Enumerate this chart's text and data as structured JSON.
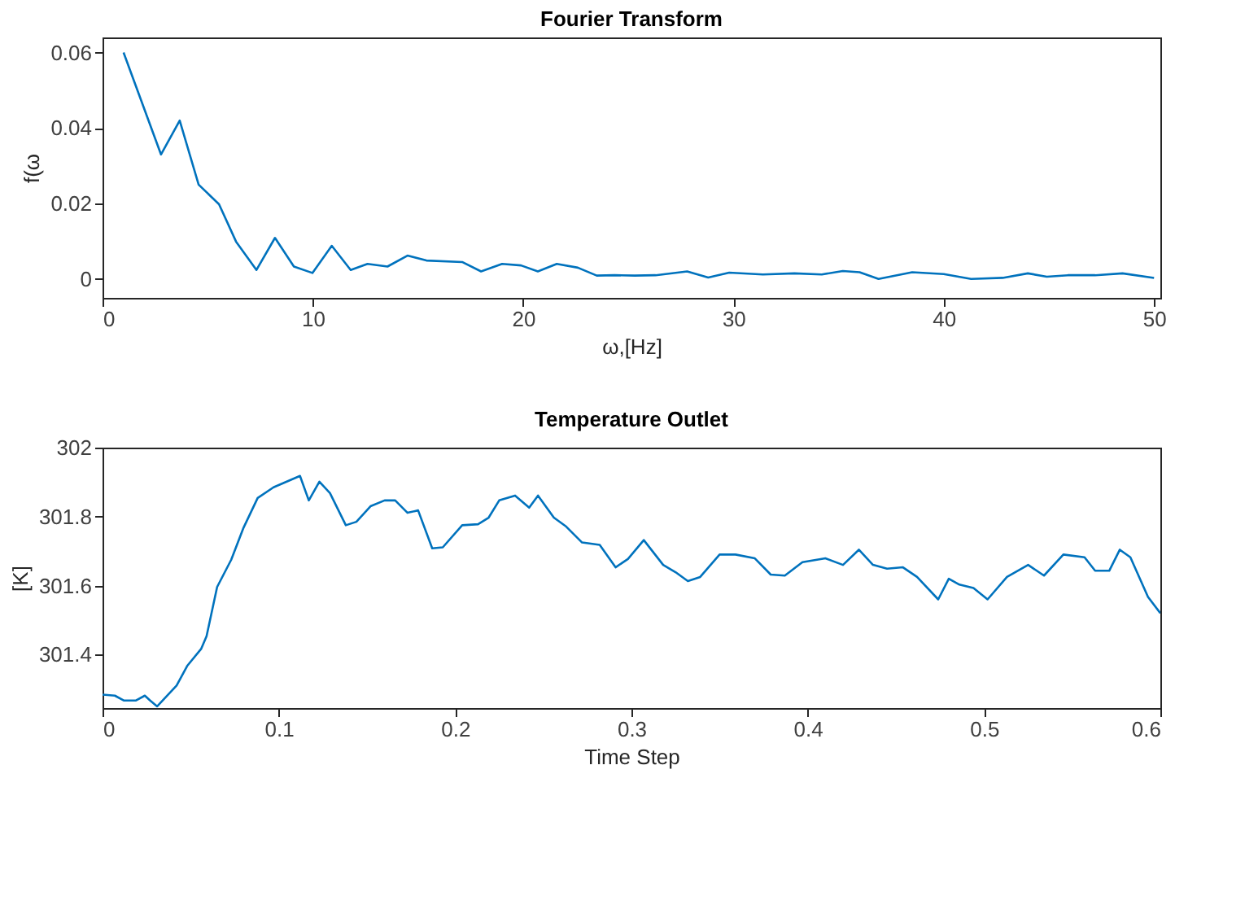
{
  "chart_data": [
    {
      "type": "line",
      "title": "Fourier Transform",
      "xlabel": "ω,[Hz]",
      "ylabel": "f(ω",
      "xlim": [
        0,
        50.3
      ],
      "xticks": [
        0,
        10,
        20,
        30,
        40,
        50
      ],
      "ylim": [
        -0.005,
        0.064
      ],
      "yticks": [
        0,
        0.02,
        0.04,
        0.06
      ],
      "grid": false,
      "marker": "none",
      "line_style": "solid",
      "series": [
        {
          "color": "#0072bd",
          "x": [
            1.0,
            2.78,
            3.67,
            4.57,
            5.54,
            6.35,
            7.32,
            8.2,
            9.1,
            9.98,
            10.9,
            11.8,
            12.6,
            13.55,
            14.5,
            15.4,
            17.1,
            18.0,
            19.0,
            19.9,
            20.7,
            21.6,
            22.6,
            23.5,
            24.35,
            25.3,
            26.3,
            27.8,
            28.8,
            29.8,
            31.4,
            32.9,
            34.2,
            35.2,
            36.0,
            36.9,
            38.5,
            40.0,
            41.3,
            42.8,
            44.0,
            44.9,
            45.9,
            47.2,
            48.5,
            50.0
          ],
          "values": [
            0.06,
            0.033,
            0.042,
            0.025,
            0.0198,
            0.0099,
            0.0024,
            0.0109,
            0.0033,
            0.0016,
            0.0088,
            0.0024,
            0.004,
            0.0033,
            0.0062,
            0.0049,
            0.0045,
            0.002,
            0.004,
            0.0036,
            0.002,
            0.004,
            0.003,
            0.0009,
            0.001,
            0.0009,
            0.001,
            0.002,
            0.0004,
            0.0017,
            0.0012,
            0.0015,
            0.0012,
            0.0021,
            0.0018,
            0.0,
            0.0018,
            0.0013,
            0.0,
            0.0003,
            0.0015,
            0.0006,
            0.001,
            0.001,
            0.0015,
            0.0003
          ]
        }
      ]
    },
    {
      "type": "line",
      "title": "Temperature Outlet",
      "xlabel": "Time Step",
      "ylabel": "[K]",
      "xlim": [
        0,
        0.6
      ],
      "xticks": [
        0,
        0.1,
        0.2,
        0.3,
        0.4,
        0.5,
        0.6
      ],
      "ylim": [
        301.245,
        302
      ],
      "yticks": [
        301.4,
        301.6,
        301.8,
        302
      ],
      "grid": false,
      "marker": "none",
      "line_style": "solid",
      "series": [
        {
          "color": "#0072bd",
          "x": [
            0,
            0.007,
            0.012,
            0.019,
            0.024,
            0.027,
            0.031,
            0.042,
            0.048,
            0.056,
            0.059,
            0.065,
            0.073,
            0.08,
            0.088,
            0.097,
            0.112,
            0.117,
            0.123,
            0.129,
            0.138,
            0.144,
            0.152,
            0.16,
            0.166,
            0.173,
            0.179,
            0.187,
            0.193,
            0.204,
            0.213,
            0.219,
            0.225,
            0.234,
            0.242,
            0.247,
            0.256,
            0.263,
            0.272,
            0.282,
            0.291,
            0.298,
            0.307,
            0.318,
            0.325,
            0.332,
            0.339,
            0.35,
            0.359,
            0.37,
            0.379,
            0.387,
            0.397,
            0.41,
            0.42,
            0.429,
            0.437,
            0.445,
            0.454,
            0.462,
            0.474,
            0.48,
            0.486,
            0.494,
            0.502,
            0.513,
            0.525,
            0.534,
            0.545,
            0.557,
            0.563,
            0.571,
            0.577,
            0.583,
            0.593,
            0.6
          ],
          "values": [
            301.284,
            301.281,
            301.267,
            301.267,
            301.281,
            301.267,
            301.25,
            301.31,
            301.367,
            301.417,
            301.453,
            301.596,
            301.675,
            301.768,
            301.854,
            301.885,
            301.918,
            301.847,
            301.901,
            301.868,
            301.775,
            301.785,
            301.83,
            301.847,
            301.847,
            301.811,
            301.818,
            301.708,
            301.711,
            301.775,
            301.778,
            301.797,
            301.847,
            301.861,
            301.826,
            301.861,
            301.797,
            301.771,
            301.725,
            301.718,
            301.653,
            301.677,
            301.732,
            301.66,
            301.639,
            301.613,
            301.625,
            301.69,
            301.69,
            301.679,
            301.632,
            301.629,
            301.668,
            301.679,
            301.66,
            301.704,
            301.66,
            301.649,
            301.653,
            301.625,
            301.56,
            301.62,
            301.603,
            301.593,
            301.56,
            301.625,
            301.66,
            301.629,
            301.69,
            301.682,
            301.643,
            301.643,
            301.704,
            301.682,
            301.567,
            301.52
          ]
        }
      ]
    }
  ]
}
